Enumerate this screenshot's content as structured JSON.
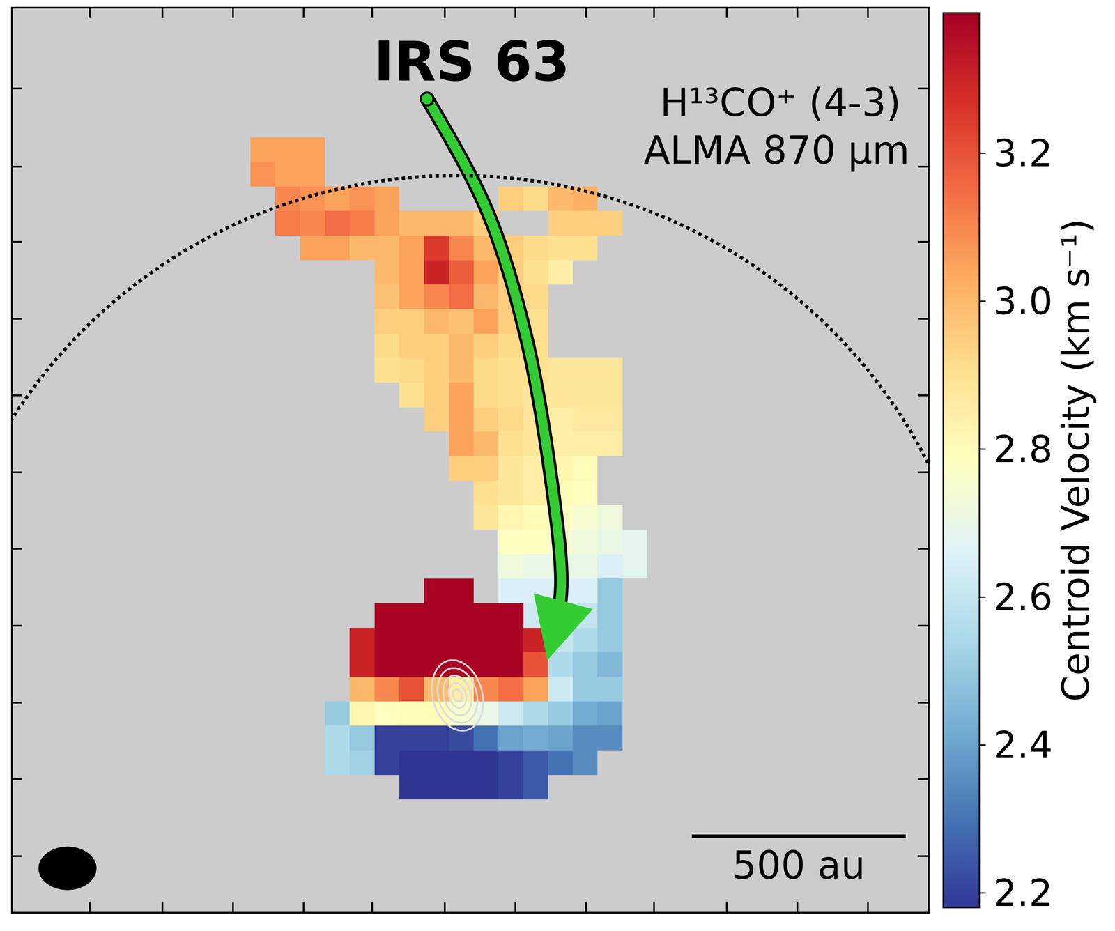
{
  "chart_data": {
    "type": "heatmap",
    "tick_labels": false,
    "xlim": [
      -1040,
      1100
    ],
    "ylim": [
      -512,
      1625
    ],
    "xticks": [
      -860,
      -690,
      -525,
      -360,
      -200,
      -30,
      135,
      300,
      460,
      630,
      795,
      960
    ],
    "yticks": [
      -380,
      -198,
      -17,
      165,
      347,
      528,
      710,
      891,
      1073,
      1251,
      1436
    ],
    "x": [
      -455,
      -397,
      -339,
      -281,
      -223,
      -165,
      -107,
      -49,
      9,
      67,
      125,
      183,
      241,
      299,
      357,
      415
    ],
    "y": [
      1291,
      1233,
      1175,
      1117,
      1059,
      1001,
      943,
      885,
      827,
      769,
      711,
      653,
      595,
      537,
      479,
      421,
      363,
      305,
      247,
      189,
      131,
      73,
      15,
      -43,
      -101,
      -159,
      -217
    ],
    "z": [
      [
        3.05,
        3.05,
        3.05,
        null,
        null,
        null,
        null,
        null,
        null,
        null,
        null,
        null,
        null,
        null,
        null,
        null
      ],
      [
        3.08,
        3.05,
        3.05,
        null,
        null,
        null,
        null,
        null,
        null,
        null,
        null,
        null,
        null,
        null,
        null,
        null
      ],
      [
        null,
        3.1,
        3.08,
        3.05,
        3.08,
        3.05,
        null,
        null,
        null,
        null,
        2.95,
        2.92,
        3.0,
        3.02,
        null,
        null
      ],
      [
        null,
        3.12,
        3.1,
        3.15,
        3.12,
        3.05,
        3.0,
        3.0,
        3.0,
        2.95,
        null,
        null,
        2.95,
        2.95,
        2.95,
        null
      ],
      [
        null,
        null,
        3.05,
        3.05,
        3.0,
        3.0,
        3.05,
        3.25,
        3.1,
        3.0,
        2.95,
        2.92,
        2.9,
        2.9,
        null,
        null
      ],
      [
        null,
        null,
        null,
        null,
        null,
        3.0,
        3.05,
        3.3,
        3.18,
        3.05,
        2.95,
        2.9,
        2.85,
        null,
        null,
        null
      ],
      [
        null,
        null,
        null,
        null,
        null,
        2.98,
        3.05,
        3.1,
        3.15,
        3.0,
        2.95,
        2.92,
        null,
        null,
        null,
        null
      ],
      [
        null,
        null,
        null,
        null,
        null,
        2.95,
        2.95,
        3.0,
        2.98,
        3.05,
        2.95,
        2.9,
        null,
        null,
        null,
        null
      ],
      [
        null,
        null,
        null,
        null,
        null,
        2.92,
        2.95,
        2.95,
        3.0,
        2.95,
        2.92,
        2.9,
        null,
        null,
        null,
        null
      ],
      [
        null,
        null,
        null,
        null,
        null,
        2.9,
        2.92,
        2.95,
        3.0,
        2.92,
        2.9,
        2.9,
        2.88,
        2.88,
        2.88,
        null
      ],
      [
        null,
        null,
        null,
        null,
        null,
        null,
        2.9,
        2.95,
        3.05,
        2.92,
        2.9,
        2.88,
        2.88,
        2.88,
        2.88,
        null
      ],
      [
        null,
        null,
        null,
        null,
        null,
        null,
        null,
        2.95,
        3.05,
        2.95,
        2.92,
        2.88,
        2.85,
        2.87,
        2.87,
        null
      ],
      [
        null,
        null,
        null,
        null,
        null,
        null,
        null,
        null,
        3.05,
        3.0,
        2.9,
        2.88,
        2.85,
        2.85,
        2.85,
        null
      ],
      [
        null,
        null,
        null,
        null,
        null,
        null,
        null,
        null,
        2.95,
        2.95,
        2.88,
        2.85,
        2.82,
        2.8,
        null,
        null
      ],
      [
        null,
        null,
        null,
        null,
        null,
        null,
        null,
        null,
        null,
        2.9,
        2.88,
        2.85,
        2.8,
        2.78,
        null,
        null
      ],
      [
        null,
        null,
        null,
        null,
        null,
        null,
        null,
        null,
        null,
        2.88,
        2.82,
        2.8,
        2.78,
        2.75,
        2.72,
        null
      ],
      [
        null,
        null,
        null,
        null,
        null,
        null,
        null,
        null,
        null,
        null,
        2.78,
        2.78,
        2.75,
        2.72,
        2.7,
        2.68
      ],
      [
        null,
        null,
        null,
        null,
        null,
        null,
        null,
        null,
        null,
        null,
        2.72,
        2.7,
        2.7,
        2.7,
        2.65,
        2.68
      ],
      [
        null,
        null,
        null,
        null,
        null,
        null,
        null,
        3.38,
        3.38,
        null,
        2.65,
        2.65,
        2.65,
        2.65,
        2.5,
        null
      ],
      [
        null,
        null,
        null,
        null,
        null,
        3.38,
        3.38,
        3.38,
        3.38,
        3.38,
        3.38,
        2.62,
        2.6,
        2.6,
        2.5,
        null
      ],
      [
        null,
        null,
        null,
        null,
        3.3,
        3.38,
        3.38,
        3.38,
        3.38,
        3.38,
        3.38,
        3.3,
        2.6,
        2.55,
        2.5,
        null
      ],
      [
        null,
        null,
        null,
        null,
        3.3,
        3.38,
        3.38,
        3.38,
        3.38,
        3.38,
        3.38,
        3.2,
        2.55,
        2.5,
        2.45,
        null
      ],
      [
        null,
        null,
        null,
        null,
        3.0,
        3.1,
        3.2,
        3.0,
        2.85,
        3.1,
        3.15,
        3.05,
        2.62,
        2.5,
        2.5,
        null
      ],
      [
        null,
        null,
        null,
        2.5,
        2.82,
        2.78,
        2.8,
        2.8,
        2.75,
        2.7,
        2.62,
        2.55,
        2.5,
        2.42,
        2.4,
        null
      ],
      [
        null,
        null,
        null,
        2.55,
        2.5,
        2.2,
        2.2,
        2.2,
        2.22,
        2.3,
        2.4,
        2.42,
        2.4,
        2.35,
        2.35,
        null
      ],
      [
        null,
        null,
        null,
        2.55,
        2.52,
        2.2,
        2.18,
        2.18,
        2.18,
        2.18,
        2.2,
        2.25,
        2.3,
        2.35,
        null,
        null
      ],
      [
        null,
        null,
        null,
        null,
        null,
        null,
        2.18,
        2.18,
        2.18,
        2.18,
        2.2,
        2.25,
        null,
        null,
        null,
        null
      ]
    ],
    "zlim": [
      2.18,
      3.39
    ],
    "zticks": [
      2.2,
      2.4,
      2.6,
      2.8,
      {
        "value": 3,
        "label": "3.0"
      },
      3.2
    ],
    "colorbar_title": "Centroid Velocity (km s⁻¹)",
    "annotations": [
      {
        "text": "IRS 63",
        "x": 33,
        "y": 1500
      },
      {
        "text": "H¹³CO⁺ (4-3)",
        "x": 1039,
        "y": 1402
      },
      {
        "text": "ALMA 870 μm",
        "x": 1059,
        "y": 1290
      }
    ],
    "source": [
      0,
      0
    ],
    "circle_radius": 1230,
    "contours": [
      {
        "a": 58,
        "b": 85
      },
      {
        "a": 45,
        "b": 66
      },
      {
        "a": 32,
        "b": 48
      },
      {
        "a": 20,
        "b": 30
      },
      {
        "a": 10,
        "b": 15
      }
    ],
    "arrow": {
      "x": [
        -71,
        69,
        160,
        218,
        243,
        234,
        210
      ],
      "y": [
        1411,
        1147,
        850,
        520,
        272,
        173,
        83
      ]
    },
    "beam": {
      "x": -912,
      "y": -409,
      "major": 135,
      "minor": 102
    },
    "scale_bar": {
      "x": 548,
      "y": -333,
      "length": 500,
      "label": "500 au"
    }
  }
}
